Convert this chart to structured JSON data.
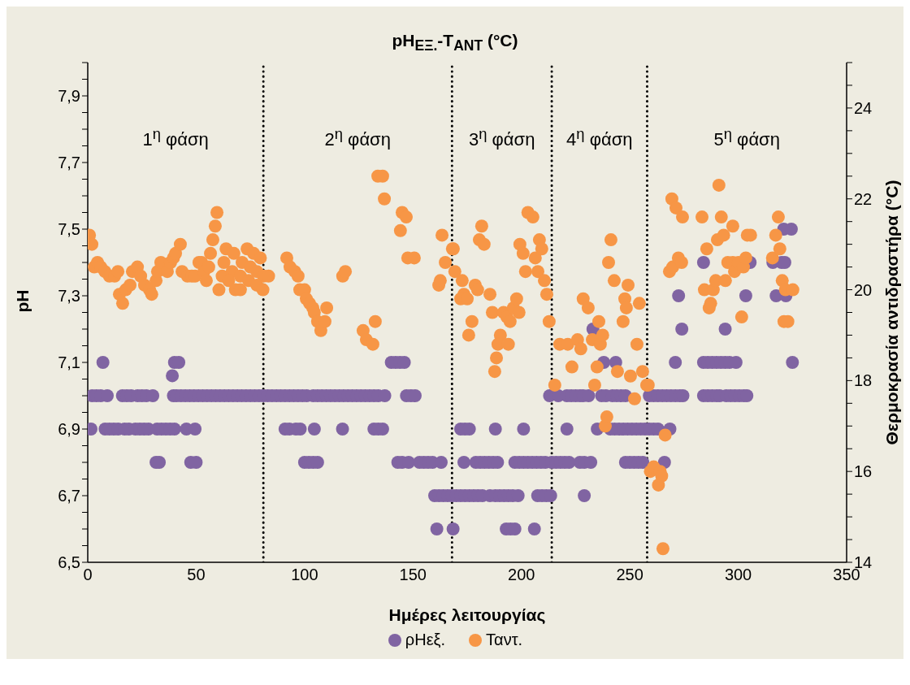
{
  "chart_data": {
    "type": "scatter",
    "title": "pH$_{ΕΞ.}$-T$_{ΑΝΤ}$ (°C)",
    "xlabel": "Ημέρες λειτουργίας",
    "ylabel": "pH",
    "y2label": "Θερμοκρασία αντιδραστήρα (°C)",
    "xlim": [
      0,
      350
    ],
    "xticks": [
      0,
      50,
      100,
      150,
      200,
      250,
      300,
      350
    ],
    "ylim": [
      6.5,
      8
    ],
    "yticks": [
      {
        "value": 6.5,
        "label": "6,5"
      },
      {
        "value": 6.55,
        "label": null
      },
      {
        "value": 6.6,
        "label": null
      },
      {
        "value": 6.65,
        "label": null
      },
      {
        "value": 6.7,
        "label": "6,7"
      },
      {
        "value": 6.75,
        "label": null
      },
      {
        "value": 6.8,
        "label": null
      },
      {
        "value": 6.85,
        "label": null
      },
      {
        "value": 6.9,
        "label": "6,9"
      },
      {
        "value": 6.95,
        "label": null
      },
      {
        "value": 7,
        "label": null
      },
      {
        "value": 7.05,
        "label": null
      },
      {
        "value": 7.1,
        "label": "7,1"
      },
      {
        "value": 7.15,
        "label": null
      },
      {
        "value": 7.2,
        "label": null
      },
      {
        "value": 7.25,
        "label": null
      },
      {
        "value": 7.3,
        "label": "7,3"
      },
      {
        "value": 7.35,
        "label": null
      },
      {
        "value": 7.4,
        "label": null
      },
      {
        "value": 7.45,
        "label": null
      },
      {
        "value": 7.5,
        "label": "7,5"
      },
      {
        "value": 7.55,
        "label": null
      },
      {
        "value": 7.6,
        "label": null
      },
      {
        "value": 7.65,
        "label": null
      },
      {
        "value": 7.7,
        "label": "7,7"
      },
      {
        "value": 7.75,
        "label": null
      },
      {
        "value": 7.8,
        "label": null
      },
      {
        "value": 7.85,
        "label": null
      },
      {
        "value": 7.9,
        "label": "7,9"
      },
      {
        "value": 7.95,
        "label": null
      },
      {
        "value": 8,
        "label": null
      }
    ],
    "y2lim": [
      14,
      25
    ],
    "y2ticks": [
      14,
      {
        "value": 14.5,
        "label": null
      },
      {
        "value": 15,
        "label": null
      },
      {
        "value": 15.5,
        "label": null
      },
      16,
      {
        "value": 16.5,
        "label": null
      },
      {
        "value": 17,
        "label": null
      },
      {
        "value": 17.5,
        "label": null
      },
      18,
      {
        "value": 18.5,
        "label": null
      },
      {
        "value": 19,
        "label": null
      },
      {
        "value": 19.5,
        "label": null
      },
      20,
      {
        "value": 20.5,
        "label": null
      },
      {
        "value": 21,
        "label": null
      },
      {
        "value": 21.5,
        "label": null
      },
      22,
      {
        "value": 22.5,
        "label": null
      },
      {
        "value": 23,
        "label": null
      },
      {
        "value": 23.5,
        "label": null
      },
      24,
      {
        "value": 24.5,
        "label": null
      },
      {
        "value": 25,
        "label": null
      }
    ],
    "legend": "bottom",
    "marker": "circle",
    "ref_lines": [
      {
        "axis": "x",
        "value": 81,
        "color": "#000000",
        "line_style": "dotted"
      },
      {
        "axis": "x",
        "value": 168,
        "color": "#000000",
        "line_style": "dotted"
      },
      {
        "axis": "x",
        "value": 214,
        "color": "#000000",
        "line_style": "dotted"
      },
      {
        "axis": "x",
        "value": 258,
        "color": "#000000",
        "line_style": "dotted"
      }
    ],
    "annotations": [
      "1$^{η}$ φάση",
      "2$^{η}$ φάση",
      "3$^{η}$ φάση",
      "4$^{η}$ φάση",
      "5$^{η}$ φάση"
    ],
    "series": [
      {
        "name": "ρΗεξ.",
        "color": "#8064a2",
        "x": [
          1.5,
          2,
          4,
          6,
          7,
          8,
          9,
          10,
          12,
          14,
          16,
          17,
          18,
          19,
          20,
          22,
          23,
          24,
          25,
          26,
          27,
          28,
          30,
          31.5,
          33,
          32,
          34,
          36,
          38,
          40,
          39.5,
          41,
          43,
          45,
          47,
          39,
          40,
          42,
          45.5,
          49.5,
          47.5,
          50,
          49,
          51,
          53,
          55,
          57,
          59,
          61,
          63,
          65,
          67,
          69,
          71,
          73,
          75,
          77,
          79,
          81,
          83,
          85,
          87,
          89,
          91,
          93,
          95,
          97,
          99,
          101,
          104,
          106,
          108,
          110,
          112,
          114,
          116,
          118,
          120,
          122,
          124,
          126,
          128,
          130,
          132,
          134,
          137,
          147,
          149,
          151,
          140,
          142,
          144,
          146,
          91,
          93,
          96,
          98,
          104.5,
          117.5,
          132,
          134,
          136,
          100,
          102,
          104,
          106,
          143,
          145,
          148,
          153,
          155,
          157,
          159,
          163,
          160,
          162,
          164,
          166,
          168,
          170,
          172,
          174,
          176,
          178,
          180,
          182,
          185.5,
          188,
          190,
          192,
          194,
          196,
          198.5,
          207.5,
          209.5,
          211.5,
          213.5,
          229,
          161,
          168.5,
          193,
          195,
          197,
          206,
          173.5,
          179,
          181,
          183,
          185,
          187,
          189,
          197,
          199,
          201,
          203,
          205,
          207,
          209,
          211,
          214,
          216,
          218,
          220,
          222,
          227,
          229,
          232,
          248,
          250,
          252,
          254,
          256,
          266,
          172,
          174,
          176,
          188,
          201,
          221,
          235,
          241,
          243,
          245,
          247,
          249,
          251,
          253,
          255,
          257,
          259,
          261,
          263,
          268.5,
          213,
          217,
          221,
          223,
          225,
          227,
          228.5,
          231,
          237,
          239,
          242,
          244,
          246,
          248,
          259,
          261,
          263,
          265,
          267,
          269,
          271,
          273,
          274.5,
          284,
          286,
          288,
          290,
          291.5,
          294.5,
          296.5,
          298.5,
          300.5,
          302.5,
          304,
          238,
          243.5,
          271,
          284,
          286,
          288,
          290,
          292,
          294,
          296,
          299,
          325,
          233,
          274,
          294,
          272.5,
          303.5,
          317.5,
          322,
          284,
          305.5,
          316,
          320,
          321.5,
          321,
          324.5
        ],
        "values": [
          6.9,
          7,
          7,
          7,
          7.1,
          6.9,
          7,
          6.9,
          6.9,
          6.9,
          7,
          6.9,
          7,
          6.9,
          7,
          6.9,
          7,
          6.9,
          7,
          6.9,
          7,
          6.9,
          7,
          6.8,
          6.8,
          6.9,
          6.9,
          6.9,
          6.9,
          6.9,
          7,
          7,
          7,
          7,
          7,
          7.06,
          7.1,
          7.1,
          6.9,
          6.9,
          6.8,
          6.8,
          7,
          7,
          7,
          7,
          7,
          7,
          7,
          7,
          7,
          7,
          7,
          7,
          7,
          7,
          7,
          7,
          7,
          7,
          7,
          7,
          7,
          7,
          7,
          7,
          7,
          7,
          7,
          7,
          7,
          7,
          7,
          7,
          7,
          7,
          7,
          7,
          7,
          7,
          7,
          7,
          7,
          7,
          7,
          7,
          7,
          7,
          7,
          7.1,
          7.1,
          7.1,
          7.1,
          6.9,
          6.9,
          6.9,
          6.9,
          6.9,
          6.9,
          6.9,
          6.9,
          6.9,
          6.8,
          6.8,
          6.8,
          6.8,
          6.8,
          6.8,
          6.8,
          6.8,
          6.8,
          6.8,
          6.8,
          6.8,
          6.7,
          6.7,
          6.7,
          6.7,
          6.7,
          6.7,
          6.7,
          6.7,
          6.7,
          6.7,
          6.7,
          6.7,
          6.7,
          6.7,
          6.7,
          6.7,
          6.7,
          6.7,
          6.7,
          6.7,
          6.7,
          6.7,
          6.7,
          6.7,
          6.6,
          6.6,
          6.6,
          6.6,
          6.6,
          6.6,
          6.8,
          6.8,
          6.8,
          6.8,
          6.8,
          6.8,
          6.8,
          6.8,
          6.8,
          6.8,
          6.8,
          6.8,
          6.8,
          6.8,
          6.8,
          6.8,
          6.8,
          6.8,
          6.8,
          6.8,
          6.8,
          6.8,
          6.8,
          6.8,
          6.8,
          6.8,
          6.8,
          6.8,
          6.8,
          6.9,
          6.9,
          6.9,
          6.9,
          6.9,
          6.9,
          6.9,
          6.9,
          6.9,
          6.9,
          6.9,
          6.9,
          6.9,
          6.9,
          6.9,
          6.9,
          6.9,
          6.9,
          6.9,
          6.9,
          7,
          7,
          7,
          7,
          7,
          7,
          7,
          7,
          7,
          7,
          7,
          7,
          7,
          7,
          7,
          7,
          7,
          7,
          7,
          7,
          7,
          7,
          7,
          7,
          7,
          7,
          7,
          7,
          7,
          7,
          7,
          7,
          7,
          7,
          7.1,
          7.1,
          7.1,
          7.1,
          7.1,
          7.1,
          7.1,
          7.1,
          7.1,
          7.1,
          7.1,
          7.1,
          7.2,
          7.2,
          7.2,
          7.3,
          7.3,
          7.3,
          7.3,
          7.4,
          7.4,
          7.4,
          7.4,
          7.4,
          7.5,
          7.5
        ]
      },
      {
        "name": "Ταντ.",
        "color": "#f79646",
        "axis": "y2",
        "x": [
          0.8,
          1.9,
          3,
          4.5,
          6,
          7.9,
          10,
          12.4,
          13.9,
          14.6,
          16.1,
          17.5,
          19.5,
          20.6,
          22.9,
          24.4,
          26.2,
          28.5,
          29.5,
          31.5,
          32.2,
          33.7,
          36.7,
          38.2,
          39.5,
          40.5,
          42.7,
          43.5,
          46,
          48,
          49.5,
          51.3,
          52.5,
          53.6,
          54.7,
          55.8,
          56.6,
          57.7,
          58.8,
          59.6,
          63.8,
          67.4,
          71.2,
          75,
          78,
          81.1,
          83.4,
          73.5,
          76.5,
          79.6,
          62.8,
          66.6,
          70.4,
          74.2,
          78,
          80.8,
          62,
          65,
          68.1,
          70.4,
          60.5,
          91.8,
          93.3,
          95.5,
          97,
          97.8,
          100,
          100.8,
          102.3,
          103.8,
          104.5,
          106,
          107.5,
          109.4,
          110.2,
          117.6,
          118.8,
          127,
          128.5,
          131.5,
          132.6,
          133.8,
          136,
          136.8,
          145,
          146.9,
          144.2,
          147.6,
          150.6,
          161.9,
          162.6,
          163.4,
          164.9,
          168.2,
          168.6,
          169.3,
          172.7,
          173.5,
          172,
          175,
          177.2,
          175.7,
          178.7,
          179.8,
          180.6,
          181.7,
          182.8,
          185.5,
          186.6,
          188.5,
          187.7,
          190.3,
          189.2,
          191.8,
          193.3,
          194,
          194.8,
          196.3,
          197.8,
          198.9,
          199.3,
          200.8,
          201.9,
          203,
          205.3,
          206.4,
          207.6,
          208.3,
          209.4,
          210.6,
          211.7,
          212.8,
          215.4,
          217.7,
          221.4,
          223.3,
          225.9,
          227.4,
          228.5,
          230.8,
          232.7,
          233.8,
          234.9,
          235.7,
          236.4,
          237.5,
          238.7,
          239.4,
          240.2,
          241.3,
          242.8,
          244.3,
          246.9,
          247.7,
          248.4,
          249.2,
          250.3,
          252.2,
          253.3,
          254.4,
          255.9,
          257.8,
          258.5,
          266.3,
          259.5,
          261,
          263.2,
          264,
          264.7,
          265.3,
          268.3,
          269.8,
          272.4,
          273.9,
          269.4,
          271.3,
          274.3,
          283.3,
          284.4,
          286.6,
          287.3,
          285.5,
          288.5,
          289.6,
          290.4,
          291.1,
          292.2,
          293.3,
          294.1,
          295.2,
          297.5,
          297.5,
          298.3,
          300.1,
          301.6,
          302.4,
          303.5,
          304.2,
          305.7,
          315.8,
          317.3,
          318.5,
          319.2,
          320.3,
          321.8,
          325.2,
          321.1,
          322.9
        ],
        "values": [
          21.2,
          21,
          20.5,
          20.6,
          20.5,
          20.4,
          20.3,
          20.3,
          20.4,
          19.9,
          19.7,
          20,
          20.1,
          20.4,
          20.5,
          20.3,
          20.1,
          20,
          19.9,
          20.2,
          20.4,
          20.6,
          20.4,
          20.6,
          20.7,
          20.8,
          21,
          20.4,
          20.3,
          20.3,
          20.3,
          20.6,
          20.6,
          20.4,
          20.2,
          20.5,
          20.8,
          21.1,
          21.4,
          21.7,
          20.9,
          20.8,
          20.6,
          20.5,
          20.4,
          20.3,
          20.3,
          20.9,
          20.8,
          20.7,
          20.6,
          20.4,
          20.3,
          20.2,
          20.1,
          20,
          20.3,
          20.2,
          20,
          20,
          20,
          20.7,
          20.5,
          20.4,
          20.3,
          20,
          20,
          19.8,
          19.7,
          19.6,
          19.5,
          19.3,
          19.1,
          19.3,
          19.6,
          20.3,
          20.4,
          19.1,
          18.9,
          18.8,
          19.3,
          22.5,
          22.5,
          22,
          21.7,
          21.6,
          21.3,
          20.7,
          20.7,
          20.1,
          20.2,
          21.2,
          20.6,
          20.9,
          20.9,
          20.4,
          20.2,
          19.9,
          19.8,
          19.8,
          19.3,
          19,
          20.1,
          20,
          21.1,
          21.4,
          21,
          19.9,
          19.5,
          18.5,
          18.2,
          19,
          18.8,
          19.5,
          19.4,
          18.8,
          19.3,
          19.6,
          19.8,
          19.5,
          21,
          20.8,
          20.4,
          21.7,
          21.6,
          20.7,
          20.4,
          21.1,
          20.9,
          20.2,
          19.9,
          19.3,
          17.9,
          18.8,
          18.8,
          18.3,
          18.9,
          18.7,
          19.8,
          19.6,
          18.9,
          17.9,
          18.3,
          19.3,
          18.8,
          19,
          17,
          17.2,
          20.6,
          21.1,
          20.2,
          18.2,
          19.3,
          19.8,
          19.6,
          20.1,
          18.1,
          17.6,
          18.8,
          19.7,
          18.2,
          17.9,
          17.9,
          16.8,
          16,
          16.1,
          15.7,
          16,
          15.9,
          14.3,
          20.4,
          20.5,
          20.7,
          20.6,
          22,
          21.8,
          21.6,
          21.6,
          20,
          19.6,
          19.7,
          20.9,
          20,
          20.2,
          21.1,
          22.3,
          21.6,
          21.2,
          20.2,
          20.6,
          21.4,
          20.6,
          20.4,
          20.6,
          19.4,
          20.5,
          20.7,
          21.2,
          21.2,
          20.7,
          21.2,
          21.6,
          20.9,
          20.2,
          20,
          20,
          19.3,
          19.3
        ]
      }
    ]
  }
}
